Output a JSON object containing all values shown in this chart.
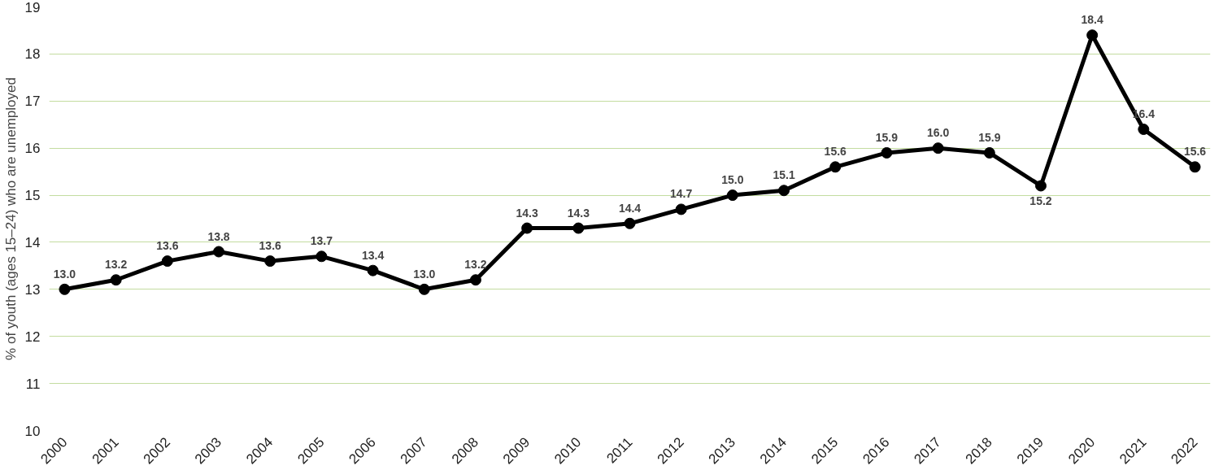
{
  "chart_data": {
    "type": "line",
    "ylabel": "% of youth (ages 15–24) who are unemployed",
    "categories": [
      "2000",
      "2001",
      "2002",
      "2003",
      "2004",
      "2005",
      "2006",
      "2007",
      "2008",
      "2009",
      "2010",
      "2011",
      "2012",
      "2013",
      "2014",
      "2015",
      "2016",
      "2017",
      "2018",
      "2019",
      "2020",
      "2021",
      "2022"
    ],
    "series": [
      {
        "color": "#000000",
        "values": [
          13.0,
          13.2,
          13.6,
          13.8,
          13.6,
          13.7,
          13.4,
          13.0,
          13.2,
          14.3,
          14.3,
          14.4,
          14.7,
          15.0,
          15.1,
          15.6,
          15.9,
          16.0,
          15.9,
          15.2,
          18.4,
          16.4,
          15.6
        ],
        "value_labels": [
          "13.0",
          "13.2",
          "13.6",
          "13.8",
          "13.6",
          "13.7",
          "13.4",
          "13.0",
          "13.2",
          "14.3",
          "14.3",
          "14.4",
          "14.7",
          "15.0",
          "15.1",
          "15.6",
          "15.9",
          "16.0",
          "15.9",
          "15.2",
          "18.4",
          "16.4",
          "15.6"
        ]
      }
    ],
    "ylim": [
      10,
      19
    ],
    "yticks": [
      10,
      11,
      12,
      13,
      14,
      15,
      16,
      17,
      18,
      19
    ],
    "grid": "y",
    "marker": "circle",
    "line_style": "solid"
  }
}
